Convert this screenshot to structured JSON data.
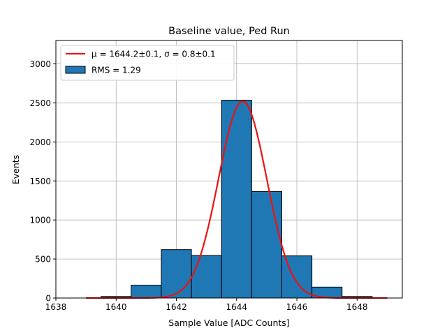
{
  "chart_data": {
    "type": "bar",
    "title": "Baseline value, Ped Run",
    "xlabel": "Sample Value [ADC Counts]",
    "ylabel": "Events",
    "xlim": [
      1638,
      1649.5
    ],
    "ylim": [
      0,
      3300
    ],
    "xticks": [
      1638,
      1640,
      1642,
      1644,
      1646,
      1648
    ],
    "yticks": [
      0,
      500,
      1000,
      1500,
      2000,
      2500,
      3000
    ],
    "grid": true,
    "legend_position": "top-left",
    "bins": [
      {
        "x0": 1638.5,
        "x1": 1639.5,
        "count": 0
      },
      {
        "x0": 1639.5,
        "x1": 1640.5,
        "count": 20
      },
      {
        "x0": 1640.5,
        "x1": 1641.5,
        "count": 165
      },
      {
        "x0": 1641.5,
        "x1": 1642.5,
        "count": 620
      },
      {
        "x0": 1642.5,
        "x1": 1643.5,
        "count": 545
      },
      {
        "x0": 1643.5,
        "x1": 1644.5,
        "count": 2535
      },
      {
        "x0": 1644.5,
        "x1": 1645.5,
        "count": 1365
      },
      {
        "x0": 1645.5,
        "x1": 1646.5,
        "count": 540
      },
      {
        "x0": 1646.5,
        "x1": 1647.5,
        "count": 140
      },
      {
        "x0": 1647.5,
        "x1": 1648.5,
        "count": 20
      },
      {
        "x0": 1648.5,
        "x1": 1649.0,
        "count": 0
      }
    ],
    "fit": {
      "mu": 1644.2,
      "sigma": 0.8,
      "amplitude": 2520,
      "x_range": [
        1639.0,
        1649.0
      ]
    },
    "legend": [
      {
        "label": "μ = 1644.2±0.1, σ = 0.8±0.1",
        "type": "line",
        "color": "#ee1111"
      },
      {
        "label": "RMS = 1.29",
        "type": "bar",
        "color": "#1f77b4"
      }
    ],
    "colors": {
      "bar": "#1f77b4",
      "bar_edge": "#000000",
      "fit": "#ee1111",
      "grid": "#b0b0b0"
    }
  }
}
